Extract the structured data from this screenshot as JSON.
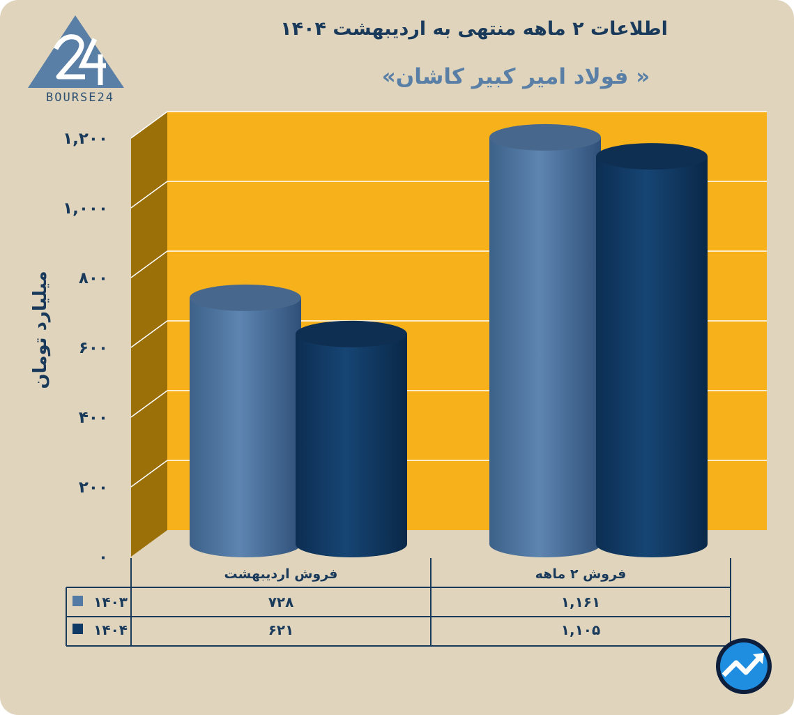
{
  "header": {
    "title": "اطلاعات ۲ ماهه منتهی به اردیبهشت ۱۴۰۴",
    "subtitle": "« فولاد امیر کبیر کاشان»",
    "logo_text": "BOURSE24"
  },
  "colors": {
    "background": "#e0d5bc",
    "plot_back": "#f7b21b",
    "plot_side": "#9b7009",
    "series_1403": "#527aa5",
    "series_1404": "#0f3a66",
    "text": "#1a3a5c"
  },
  "chart_data": {
    "type": "bar",
    "title": "اطلاعات ۲ ماهه منتهی به اردیبهشت ۱۴۰۴",
    "subtitle": "« فولاد امیر کبیر کاشان»",
    "ylabel": "میلیارد تومان",
    "xlabel": "",
    "categories": [
      "فروش اردیبهشت",
      "فروش ۲ ماهه"
    ],
    "series": [
      {
        "name": "۱۴۰۳",
        "values": [
          728,
          1161
        ],
        "labels": [
          "۷۲۸",
          "۱,۱۶۱"
        ]
      },
      {
        "name": "۱۴۰۴",
        "values": [
          621,
          1105
        ],
        "labels": [
          "۶۲۱",
          "۱,۱۰۵"
        ]
      }
    ],
    "ylim": [
      0,
      1200
    ],
    "yticks": [
      0,
      200,
      400,
      600,
      800,
      1000,
      1200
    ],
    "ytick_labels": [
      "۰",
      "۲۰۰",
      "۴۰۰",
      "۶۰۰",
      "۸۰۰",
      "۱,۰۰۰",
      "۱,۲۰۰"
    ],
    "grid": true,
    "legend": "data-table"
  }
}
